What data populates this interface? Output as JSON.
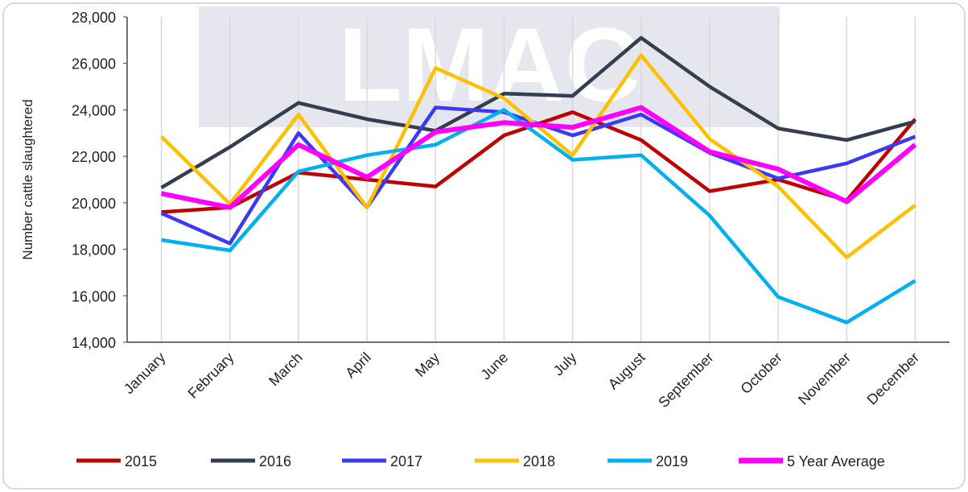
{
  "chart_data": {
    "type": "line",
    "watermark": "LMAC",
    "y_label": "Number cattle slaughtered",
    "categories": [
      "January",
      "February",
      "March",
      "April",
      "May",
      "June",
      "July",
      "August",
      "September",
      "October",
      "November",
      "December"
    ],
    "series": [
      {
        "name": "2015",
        "color": "#c00000",
        "values": [
          19600,
          19800,
          21300,
          21000,
          20700,
          22900,
          23900,
          22700,
          20500,
          21000,
          20100,
          23600
        ]
      },
      {
        "name": "2016",
        "color": "#333f50",
        "values": [
          20650,
          22400,
          24300,
          23600,
          23100,
          24700,
          24600,
          27100,
          25000,
          23200,
          22700,
          23500
        ]
      },
      {
        "name": "2017",
        "color": "#3a3af5",
        "values": [
          19550,
          18250,
          23000,
          19800,
          24100,
          23900,
          22900,
          23800,
          22150,
          21050,
          21700,
          22850
        ]
      },
      {
        "name": "2018",
        "color": "#ffc000",
        "values": [
          22850,
          19950,
          23800,
          19800,
          25800,
          24500,
          22050,
          26350,
          22750,
          20700,
          17650,
          19900
        ]
      },
      {
        "name": "2019",
        "color": "#00b0f0",
        "values": [
          18400,
          17950,
          21350,
          22050,
          22500,
          24000,
          21850,
          22050,
          19450,
          15950,
          14850,
          16650
        ]
      },
      {
        "name": "5 Year Average",
        "color": "#ff00ff",
        "values": [
          20400,
          19800,
          22500,
          21100,
          23050,
          23450,
          23250,
          24100,
          22200,
          21450,
          20050,
          22500
        ]
      }
    ],
    "ylim": [
      14000,
      28000
    ],
    "yticks": [
      {
        "value": 14000,
        "label": "14,000"
      },
      {
        "value": 16000,
        "label": "16,000"
      },
      {
        "value": 18000,
        "label": "18,000"
      },
      {
        "value": 20000,
        "label": "20,000"
      },
      {
        "value": 22000,
        "label": "22,000"
      },
      {
        "value": 24000,
        "label": "24,000"
      },
      {
        "value": 26000,
        "label": "26,000"
      },
      {
        "value": 28000,
        "label": "28,000"
      }
    ],
    "grid": true,
    "legend": "bottom"
  }
}
